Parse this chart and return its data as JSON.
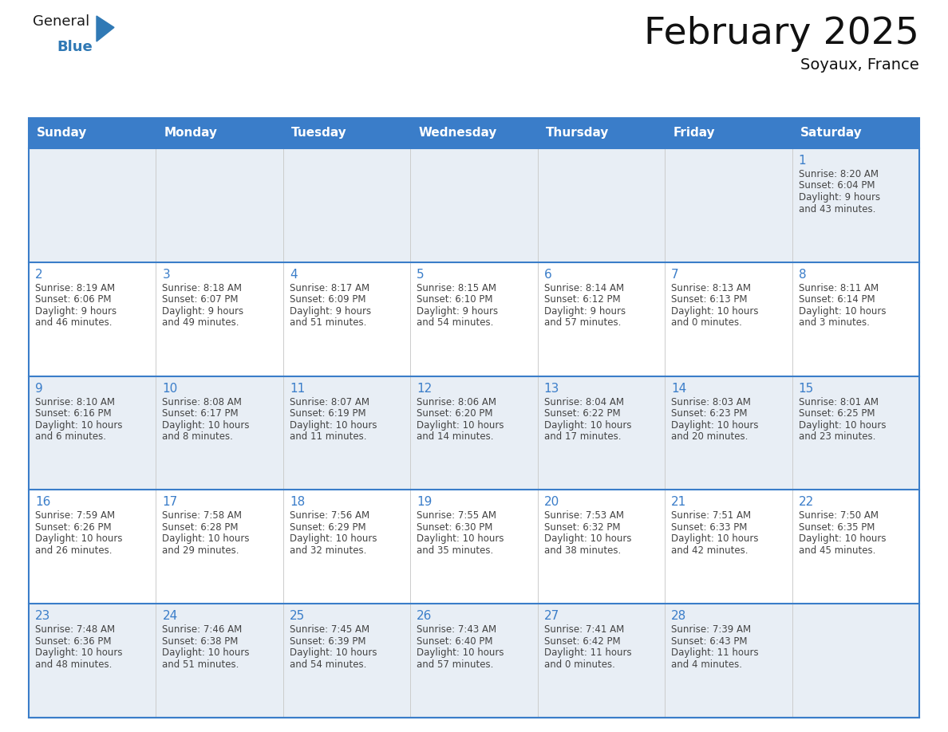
{
  "title": "February 2025",
  "subtitle": "Soyaux, France",
  "header_color": "#3a7dc9",
  "header_text_color": "#ffffff",
  "row_bg_colors": [
    "#e8eef5",
    "#ffffff"
  ],
  "border_color": "#3a7dc9",
  "day_number_color": "#3a7dc9",
  "text_color": "#444444",
  "days_of_week": [
    "Sunday",
    "Monday",
    "Tuesday",
    "Wednesday",
    "Thursday",
    "Friday",
    "Saturday"
  ],
  "weeks": [
    [
      {
        "day": null,
        "sunrise": null,
        "sunset": null,
        "daylight": null
      },
      {
        "day": null,
        "sunrise": null,
        "sunset": null,
        "daylight": null
      },
      {
        "day": null,
        "sunrise": null,
        "sunset": null,
        "daylight": null
      },
      {
        "day": null,
        "sunrise": null,
        "sunset": null,
        "daylight": null
      },
      {
        "day": null,
        "sunrise": null,
        "sunset": null,
        "daylight": null
      },
      {
        "day": null,
        "sunrise": null,
        "sunset": null,
        "daylight": null
      },
      {
        "day": 1,
        "sunrise": "8:20 AM",
        "sunset": "6:04 PM",
        "daylight": "9 hours and 43 minutes."
      }
    ],
    [
      {
        "day": 2,
        "sunrise": "8:19 AM",
        "sunset": "6:06 PM",
        "daylight": "9 hours and 46 minutes."
      },
      {
        "day": 3,
        "sunrise": "8:18 AM",
        "sunset": "6:07 PM",
        "daylight": "9 hours and 49 minutes."
      },
      {
        "day": 4,
        "sunrise": "8:17 AM",
        "sunset": "6:09 PM",
        "daylight": "9 hours and 51 minutes."
      },
      {
        "day": 5,
        "sunrise": "8:15 AM",
        "sunset": "6:10 PM",
        "daylight": "9 hours and 54 minutes."
      },
      {
        "day": 6,
        "sunrise": "8:14 AM",
        "sunset": "6:12 PM",
        "daylight": "9 hours and 57 minutes."
      },
      {
        "day": 7,
        "sunrise": "8:13 AM",
        "sunset": "6:13 PM",
        "daylight": "10 hours and 0 minutes."
      },
      {
        "day": 8,
        "sunrise": "8:11 AM",
        "sunset": "6:14 PM",
        "daylight": "10 hours and 3 minutes."
      }
    ],
    [
      {
        "day": 9,
        "sunrise": "8:10 AM",
        "sunset": "6:16 PM",
        "daylight": "10 hours and 6 minutes."
      },
      {
        "day": 10,
        "sunrise": "8:08 AM",
        "sunset": "6:17 PM",
        "daylight": "10 hours and 8 minutes."
      },
      {
        "day": 11,
        "sunrise": "8:07 AM",
        "sunset": "6:19 PM",
        "daylight": "10 hours and 11 minutes."
      },
      {
        "day": 12,
        "sunrise": "8:06 AM",
        "sunset": "6:20 PM",
        "daylight": "10 hours and 14 minutes."
      },
      {
        "day": 13,
        "sunrise": "8:04 AM",
        "sunset": "6:22 PM",
        "daylight": "10 hours and 17 minutes."
      },
      {
        "day": 14,
        "sunrise": "8:03 AM",
        "sunset": "6:23 PM",
        "daylight": "10 hours and 20 minutes."
      },
      {
        "day": 15,
        "sunrise": "8:01 AM",
        "sunset": "6:25 PM",
        "daylight": "10 hours and 23 minutes."
      }
    ],
    [
      {
        "day": 16,
        "sunrise": "7:59 AM",
        "sunset": "6:26 PM",
        "daylight": "10 hours and 26 minutes."
      },
      {
        "day": 17,
        "sunrise": "7:58 AM",
        "sunset": "6:28 PM",
        "daylight": "10 hours and 29 minutes."
      },
      {
        "day": 18,
        "sunrise": "7:56 AM",
        "sunset": "6:29 PM",
        "daylight": "10 hours and 32 minutes."
      },
      {
        "day": 19,
        "sunrise": "7:55 AM",
        "sunset": "6:30 PM",
        "daylight": "10 hours and 35 minutes."
      },
      {
        "day": 20,
        "sunrise": "7:53 AM",
        "sunset": "6:32 PM",
        "daylight": "10 hours and 38 minutes."
      },
      {
        "day": 21,
        "sunrise": "7:51 AM",
        "sunset": "6:33 PM",
        "daylight": "10 hours and 42 minutes."
      },
      {
        "day": 22,
        "sunrise": "7:50 AM",
        "sunset": "6:35 PM",
        "daylight": "10 hours and 45 minutes."
      }
    ],
    [
      {
        "day": 23,
        "sunrise": "7:48 AM",
        "sunset": "6:36 PM",
        "daylight": "10 hours and 48 minutes."
      },
      {
        "day": 24,
        "sunrise": "7:46 AM",
        "sunset": "6:38 PM",
        "daylight": "10 hours and 51 minutes."
      },
      {
        "day": 25,
        "sunrise": "7:45 AM",
        "sunset": "6:39 PM",
        "daylight": "10 hours and 54 minutes."
      },
      {
        "day": 26,
        "sunrise": "7:43 AM",
        "sunset": "6:40 PM",
        "daylight": "10 hours and 57 minutes."
      },
      {
        "day": 27,
        "sunrise": "7:41 AM",
        "sunset": "6:42 PM",
        "daylight": "11 hours and 0 minutes."
      },
      {
        "day": 28,
        "sunrise": "7:39 AM",
        "sunset": "6:43 PM",
        "daylight": "11 hours and 4 minutes."
      },
      {
        "day": null,
        "sunrise": null,
        "sunset": null,
        "daylight": null
      }
    ]
  ],
  "logo_general_color": "#1a1a1a",
  "logo_blue_color": "#3079b5"
}
